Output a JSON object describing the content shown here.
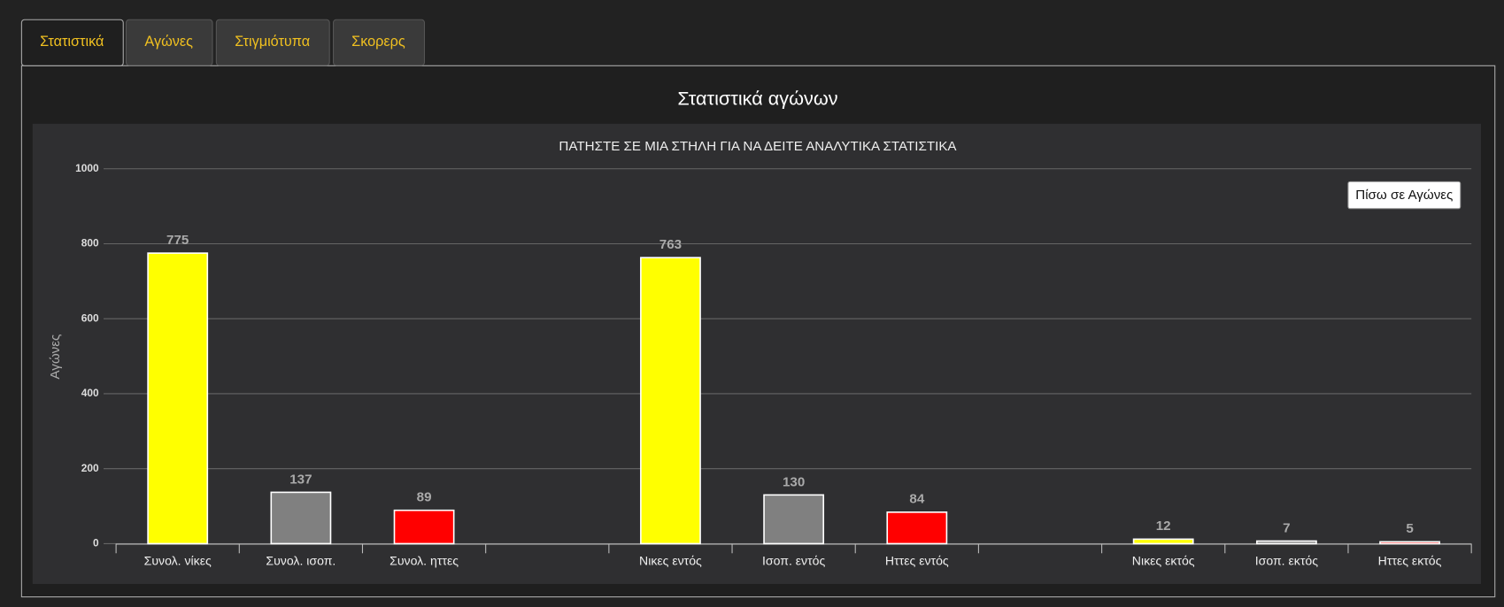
{
  "tabs": [
    "Στατιστικά",
    "Αγώνες",
    "Στιγμιότυπα",
    "Σκορερς"
  ],
  "heading": "Στατιστικά αγώνων",
  "button": "Πίσω σε Αγώνες",
  "chart_data": {
    "type": "bar",
    "title": "ΠΑΤΗΣΤΕ ΣΕ ΜΙΑ ΣΤΗΛΗ ΓΙΑ ΝΑ ΔΕΙΤΕ ΑΝΑΛΥΤΙΚΑ ΣΤΑΤΙΣΤΙΚΑ",
    "y_label": "Αγώνες",
    "categories": [
      "Συνολ. νίκες",
      "Συνολ. ισοπ.",
      "Συνολ. ηττες",
      null,
      "Νικες εντός",
      "Ισοπ. εντός",
      "Ηττες εντός",
      null,
      "Νικες εκτός",
      "Ισοπ. εκτός",
      "Ηττες εκτός"
    ],
    "values": [
      775,
      137,
      89,
      null,
      763,
      130,
      84,
      null,
      12,
      7,
      5
    ],
    "colors": [
      "#ffff00",
      "#808080",
      "#ff0000",
      null,
      "#ffff00",
      "#808080",
      "#ff0000",
      null,
      "#ffff00",
      "#808080",
      "#ff0000"
    ],
    "ylim": [
      0,
      1000
    ],
    "yticks": [
      0,
      200,
      400,
      600,
      800,
      1000
    ],
    "grid": true
  }
}
